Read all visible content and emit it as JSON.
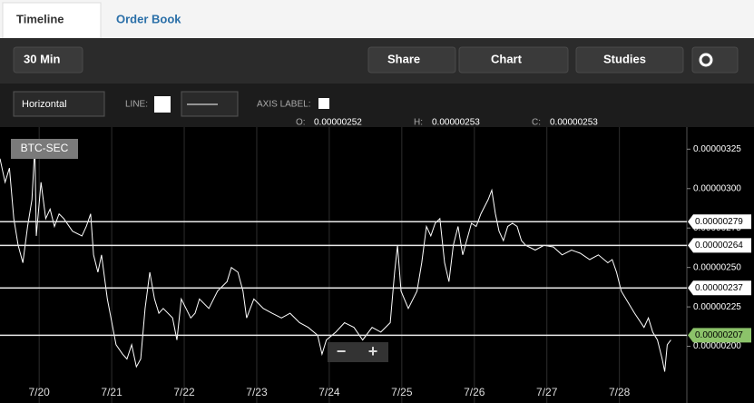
{
  "tabs": [
    "Timeline",
    "Order Book"
  ],
  "toolbar": {
    "interval": "30 Min",
    "share": "Share",
    "chart": "Chart",
    "studies": "Studies"
  },
  "drawing_toolbar": {
    "mode": "Horizontal",
    "line_label": "LINE:",
    "axis_label": "AXIS LABEL:"
  },
  "ohlc": [
    {
      "label": "O:",
      "value": "0.00000252"
    },
    {
      "label": "H:",
      "value": "0.00000253"
    },
    {
      "label": "C:",
      "value": "0.00000253"
    }
  ],
  "zoom": [
    "−",
    "+"
  ],
  "chart_data": {
    "type": "line",
    "title": "BTC-SEC",
    "color": "#ffffff",
    "x": [
      19.46,
      19.53,
      19.59,
      19.65,
      19.71,
      19.775,
      19.84,
      19.9,
      19.94,
      19.96,
      20.025,
      20.09,
      20.15,
      20.21,
      20.275,
      20.34,
      20.46,
      20.59,
      20.65,
      20.71,
      20.75,
      20.81,
      20.86,
      20.94,
      20.99,
      21.06,
      21.15,
      21.21,
      21.275,
      21.34,
      21.4,
      21.46,
      21.525,
      21.59,
      21.65,
      21.71,
      21.84,
      21.9,
      21.96,
      22.09,
      22.15,
      22.21,
      22.34,
      22.46,
      22.59,
      22.65,
      22.74,
      22.81,
      22.86,
      22.96,
      23.09,
      23.21,
      23.34,
      23.46,
      23.59,
      23.71,
      23.84,
      23.9,
      23.96,
      24.09,
      24.21,
      24.34,
      24.46,
      24.59,
      24.71,
      24.84,
      24.9,
      24.94,
      24.99,
      25.09,
      25.21,
      25.275,
      25.34,
      25.4,
      25.46,
      25.525,
      25.59,
      25.65,
      25.71,
      25.775,
      25.84,
      25.96,
      26.025,
      26.09,
      26.19,
      26.24,
      26.29,
      26.34,
      26.4,
      26.46,
      26.525,
      26.59,
      26.65,
      26.71,
      26.84,
      26.96,
      27.09,
      27.21,
      27.34,
      27.46,
      27.59,
      27.71,
      27.84,
      27.9,
      27.96,
      28.025,
      28.09,
      28.21,
      28.34,
      28.4,
      28.46,
      28.525,
      28.59,
      28.625,
      28.66,
      28.71
    ],
    "values": [
      3.19e-06,
      3.04e-06,
      3.13e-06,
      2.81e-06,
      2.64e-06,
      2.53e-06,
      2.76e-06,
      2.93e-06,
      3.27e-06,
      2.7e-06,
      3.04e-06,
      2.81e-06,
      2.87e-06,
      2.76e-06,
      2.84e-06,
      2.81e-06,
      2.73e-06,
      2.7e-06,
      2.76e-06,
      2.84e-06,
      2.58e-06,
      2.47e-06,
      2.58e-06,
      2.3e-06,
      2.18e-06,
      2.01e-06,
      1.95e-06,
      1.92e-06,
      2.01e-06,
      1.87e-06,
      1.92e-06,
      2.24e-06,
      2.47e-06,
      2.3e-06,
      2.21e-06,
      2.24e-06,
      2.18e-06,
      2.04e-06,
      2.3e-06,
      2.18e-06,
      2.21e-06,
      2.3e-06,
      2.24e-06,
      2.35e-06,
      2.41e-06,
      2.5e-06,
      2.47e-06,
      2.35e-06,
      2.18e-06,
      2.3e-06,
      2.24e-06,
      2.21e-06,
      2.18e-06,
      2.21e-06,
      2.15e-06,
      2.12e-06,
      2.07e-06,
      1.95e-06,
      2.04e-06,
      2.09e-06,
      2.15e-06,
      2.12e-06,
      2.04e-06,
      2.12e-06,
      2.09e-06,
      2.15e-06,
      2.47e-06,
      2.64e-06,
      2.35e-06,
      2.24e-06,
      2.35e-06,
      2.53e-06,
      2.76e-06,
      2.7e-06,
      2.78e-06,
      2.81e-06,
      2.53e-06,
      2.41e-06,
      2.64e-06,
      2.76e-06,
      2.58e-06,
      2.78e-06,
      2.76e-06,
      2.84e-06,
      2.93e-06,
      2.99e-06,
      2.84e-06,
      2.73e-06,
      2.67e-06,
      2.76e-06,
      2.78e-06,
      2.76e-06,
      2.67e-06,
      2.64e-06,
      2.61e-06,
      2.64e-06,
      2.63e-06,
      2.58e-06,
      2.61e-06,
      2.59e-06,
      2.55e-06,
      2.58e-06,
      2.53e-06,
      2.55e-06,
      2.47e-06,
      2.35e-06,
      2.3e-06,
      2.21e-06,
      2.12e-06,
      2.18e-06,
      2.09e-06,
      2.04e-06,
      1.92e-06,
      1.84e-06,
      2.01e-06,
      2.04e-06
    ],
    "xlim": [
      19.46,
      28.93
    ],
    "xticks": [
      {
        "value": 20,
        "label": "7/20"
      },
      {
        "value": 21,
        "label": "7/21"
      },
      {
        "value": 22,
        "label": "7/22"
      },
      {
        "value": 23,
        "label": "7/23"
      },
      {
        "value": 24,
        "label": "7/24"
      },
      {
        "value": 25,
        "label": "7/25"
      },
      {
        "value": 26,
        "label": "7/26"
      },
      {
        "value": 27,
        "label": "7/27"
      },
      {
        "value": 28,
        "label": "7/28"
      }
    ],
    "ylim": [
      1.75e-06,
      3.39e-06
    ],
    "yticks": [
      {
        "value": 2e-06,
        "label": "0.00000200"
      },
      2.25e-06,
      {
        "value": 2.5e-06,
        "label": "0.00000250"
      },
      2.75e-06,
      {
        "value": 3e-06,
        "label": "0.00000300"
      },
      3.25e-06
    ],
    "grid": "x",
    "horizontal_lines": [
      {
        "value": 2.79e-06,
        "color": "#ffffff"
      },
      {
        "value": 2.64e-06,
        "color": "#ffffff"
      },
      {
        "value": 2.37e-06,
        "color": "#ffffff"
      },
      {
        "value": 2.07e-06,
        "color": "#8cc36a"
      }
    ]
  }
}
